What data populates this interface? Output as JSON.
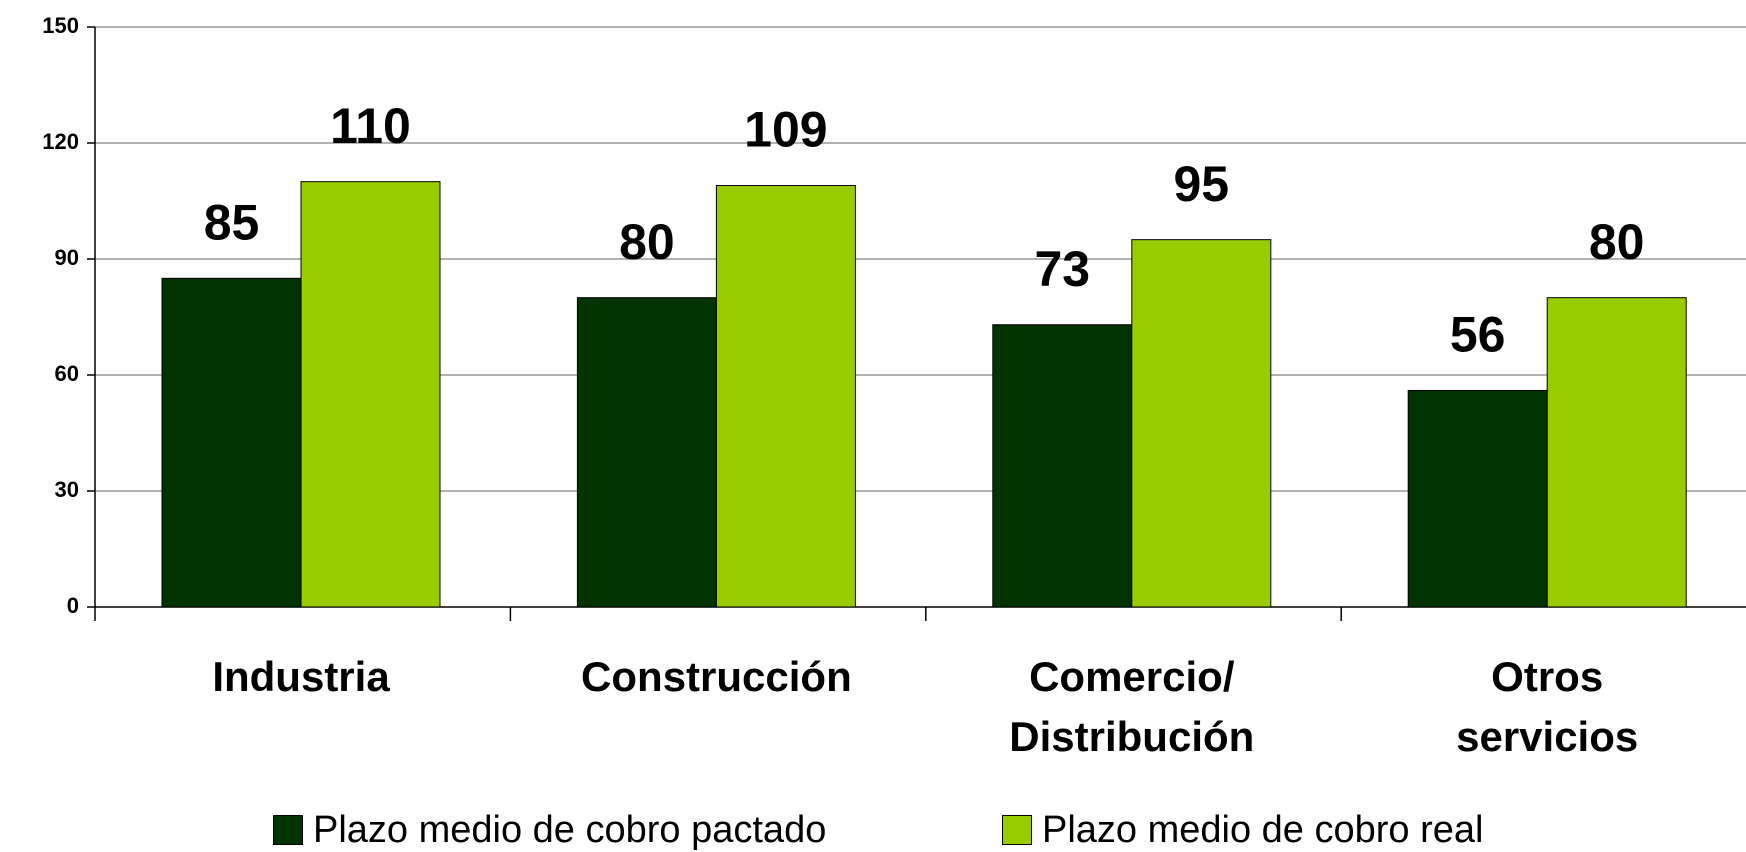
{
  "chart_data": {
    "type": "bar",
    "categories": [
      "Industria",
      "Construcción",
      "Comercio/\nDistribución",
      "Otros servicios"
    ],
    "series": [
      {
        "name": "Plazo medio de cobro pactado",
        "color": "#003300",
        "values": [
          85,
          80,
          73,
          56
        ]
      },
      {
        "name": "Plazo medio de cobro real",
        "color": "#99cc00",
        "values": [
          110,
          109,
          95,
          80
        ]
      }
    ],
    "ylim": [
      0,
      150
    ],
    "yticks": [
      0,
      30,
      60,
      90,
      120,
      150
    ],
    "grid": true,
    "legend": "bottom"
  }
}
